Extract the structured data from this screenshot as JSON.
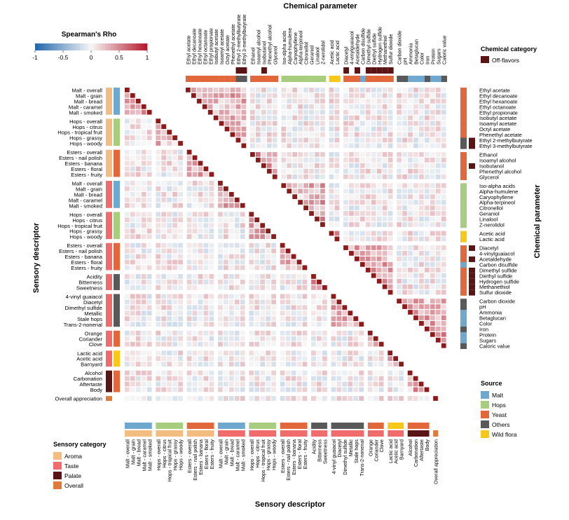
{
  "chart_data": {
    "type": "heatmap",
    "title_top": "Chemical parameter",
    "title_bottom": "Sensory descriptor",
    "title_left": "Sensory descriptor",
    "title_right": "Chemical parameter",
    "colorbar": {
      "title": "Spearman's Rho",
      "range": [
        -1,
        1
      ],
      "ticks": [
        "-1",
        "-0.5",
        "0",
        "0.5",
        "1"
      ],
      "colors": [
        "#2166ac",
        "#f7f7f7",
        "#b2182b"
      ]
    },
    "sensory_groups": [
      [
        "Malt - overall",
        "Malt - grain",
        "Malt - bread",
        "Malt - caramel",
        "Malt - smoked"
      ],
      [
        "Hops - overall",
        "Hops - citrus",
        "Hops - tropical fruit",
        "Hops - grassy",
        "Hops - woody"
      ],
      [
        "Esters - overall",
        "Esters - nail polish",
        "Esters - banana",
        "Esters - floral",
        "Esters - fruity"
      ],
      [
        "Malt - overall",
        "Malt - grain",
        "Malt - bread",
        "Malt - caramel",
        "Malt - smoked"
      ],
      [
        "Hops - overall",
        "Hops - citrus",
        "Hops - tropical fruit",
        "Hops - grassy",
        "Hops - woody"
      ],
      [
        "Esters - overall",
        "Esters - nail polish",
        "Esters - banana",
        "Esters - floral",
        "Esters - fruity"
      ],
      [
        "Acidity",
        "Bitterness",
        "Sweetness"
      ],
      [
        "4-vinyl guaiacol",
        "Diacetyl",
        "Dimethyl sulfide",
        "Metallic",
        "Stale hops",
        "Trans-2-nonenal"
      ],
      [
        "Orange",
        "Coriander",
        "Clove"
      ],
      [
        "Lactic acid",
        "Acetic acid",
        "Barnyard"
      ],
      [
        "Alcohol",
        "Carbonation",
        "Aftertaste",
        "Body"
      ],
      [
        "Overall appreciation"
      ]
    ],
    "sensory_categories": [
      "Aroma",
      "Aroma",
      "Aroma",
      "Taste",
      "Taste",
      "Taste",
      "Taste",
      "Taste",
      "Taste",
      "Taste",
      "Palate",
      "Overall"
    ],
    "sensory_sources": [
      "Malt",
      "Hops",
      "Yeast",
      "Malt",
      "Hops",
      "Yeast",
      "Others",
      "Others",
      "Yeast",
      "Wild flora",
      "Yeast",
      null
    ],
    "chemical_groups": [
      [
        "Ethyl acetate",
        "Ethyl decanoate",
        "Ethyl hexanoate",
        "Ethyl octanoate",
        "Ethyl propionate",
        "Isobutyl acetate",
        "Isoamyl acetate",
        "Octyl acetate",
        "Phenethyl acetate",
        "Ethyl 2-methylbutyrate",
        "Ethyl 3-methylbutyrate"
      ],
      [
        "Ethanol",
        "Isoamyl alcohol",
        "Isobutanol",
        "Phenethyl alcohol",
        "Glycerol"
      ],
      [
        "Iso-alpha acids",
        "Alpha-humulene",
        "Caryophyllene",
        "Alpha-terpineol",
        "Citronellol",
        "Geraniol",
        "Linalool",
        "Z-nerolidol"
      ],
      [
        "Acetic acid",
        "Lactic acid"
      ],
      [
        "Diacetyl",
        "4-vinylguaiacol",
        "Acetaldehyde",
        "Carbon disulfide",
        "Dimethyl sulfide",
        "Diethyl sulfide",
        "Hydrogen sulfide",
        "Methanethiol",
        "Sulfur dioxide"
      ],
      [
        "Carbon dioxide",
        "pH",
        "Ammonia",
        "Betaglucan",
        "Color",
        "Iron",
        "Protein",
        "Sugars",
        "Caloric value"
      ]
    ],
    "chemical_sources": [
      [
        "Yeast",
        "Yeast",
        "Yeast",
        "Yeast",
        "Yeast",
        "Yeast",
        "Yeast",
        "Yeast",
        "Yeast",
        "Others",
        "Others"
      ],
      [
        "Yeast",
        "Yeast",
        "Yeast",
        "Yeast",
        "Yeast"
      ],
      [
        "Hops",
        "Hops",
        "Hops",
        "Hops",
        "Hops",
        "Hops",
        "Hops",
        "Hops"
      ],
      [
        "Wild flora",
        "Wild flora"
      ],
      [
        "Yeast",
        "Yeast",
        "Yeast",
        "Malt",
        "Yeast",
        "Yeast",
        "Yeast",
        "Yeast",
        "Yeast"
      ],
      [
        "Others",
        "Others",
        "Malt",
        "Malt",
        "Malt",
        "Others",
        "Malt",
        "Malt",
        "Others"
      ]
    ],
    "off_flavors": [
      "Ethyl 2-methylbutyrate",
      "Ethyl 3-methylbutyrate",
      "Isobutanol",
      "Diacetyl",
      "Acetaldehyde",
      "Dimethyl sulfide",
      "Diethyl sulfide",
      "Hydrogen sulfide",
      "Methanethiol",
      "Sulfur dioxide"
    ]
  },
  "legends": {
    "chemical_category": {
      "title": "Chemical category",
      "items": [
        {
          "label": "Off-flavors",
          "color": "#5a1414"
        }
      ]
    },
    "source": {
      "title": "Source",
      "items": [
        {
          "label": "Malt",
          "color": "#6fa8cf"
        },
        {
          "label": "Hops",
          "color": "#a8cd7e"
        },
        {
          "label": "Yeast",
          "color": "#e2683c"
        },
        {
          "label": "Others",
          "color": "#595959"
        },
        {
          "label": "Wild flora",
          "color": "#f7c81a"
        }
      ]
    },
    "sensory_category": {
      "title": "Sensory category",
      "items": [
        {
          "label": "Aroma",
          "color": "#f3bd82"
        },
        {
          "label": "Taste",
          "color": "#f06c6c"
        },
        {
          "label": "Palate",
          "color": "#5a1414"
        },
        {
          "label": "Overall",
          "color": "#e07a3a"
        }
      ]
    }
  },
  "source_colors": {
    "Malt": "#6fa8cf",
    "Hops": "#a8cd7e",
    "Yeast": "#e2683c",
    "Others": "#595959",
    "Wild flora": "#f7c81a"
  },
  "category_colors": {
    "Aroma": "#f3bd82",
    "Taste": "#f06c6c",
    "Palate": "#5a1414",
    "Overall": "#e07a3a"
  },
  "diagonal_color": "#8b1a1a",
  "off_flavor_color": "#5a1414"
}
